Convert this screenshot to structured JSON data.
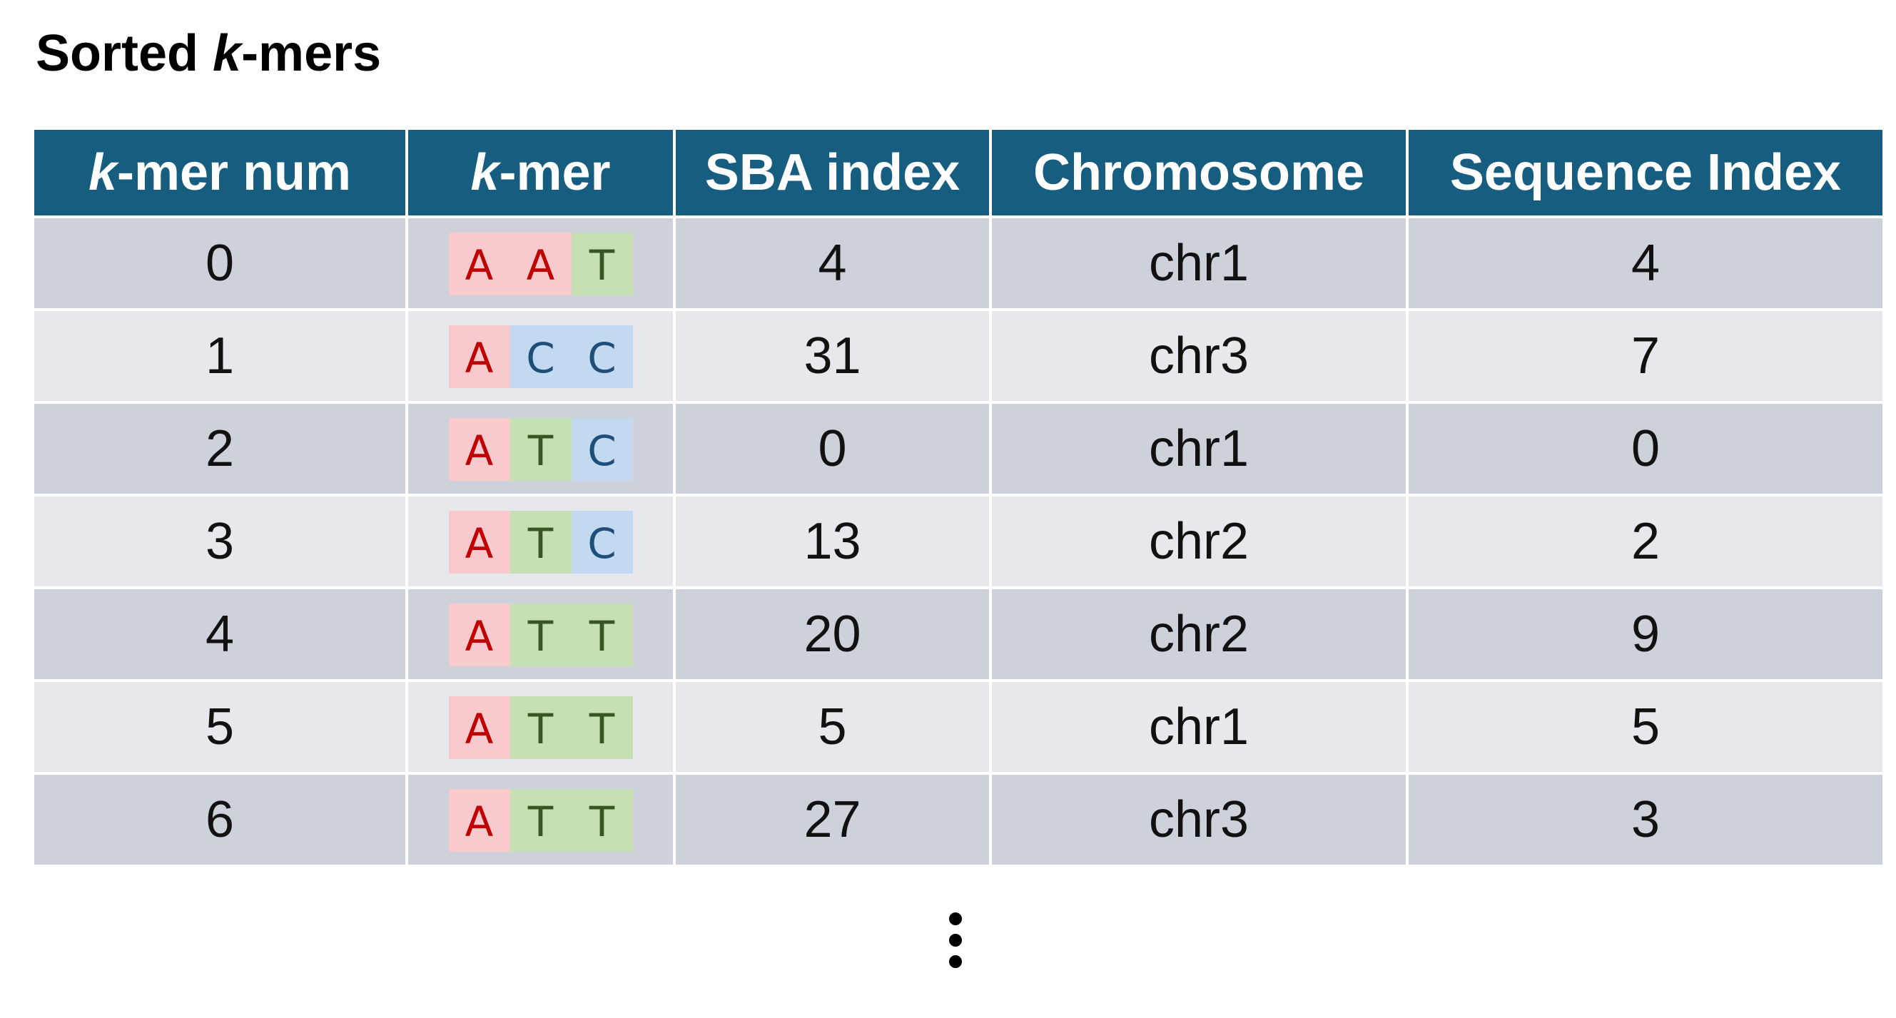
{
  "title": {
    "prefix": "Sorted ",
    "italic": "k",
    "suffix": "-mers"
  },
  "table": {
    "headers": [
      {
        "italic": "k",
        "text": "-mer num"
      },
      {
        "italic": "k",
        "text": "-mer"
      },
      {
        "italic": "",
        "text": "SBA index"
      },
      {
        "italic": "",
        "text": "Chromosome"
      },
      {
        "italic": "",
        "text": "Sequence Index"
      }
    ],
    "rows": [
      {
        "num": "0",
        "kmer": [
          "A",
          "A",
          "T"
        ],
        "sba": "4",
        "chrom": "chr1",
        "seq": "4"
      },
      {
        "num": "1",
        "kmer": [
          "A",
          "C",
          "C"
        ],
        "sba": "31",
        "chrom": "chr3",
        "seq": "7"
      },
      {
        "num": "2",
        "kmer": [
          "A",
          "T",
          "C"
        ],
        "sba": "0",
        "chrom": "chr1",
        "seq": "0"
      },
      {
        "num": "3",
        "kmer": [
          "A",
          "T",
          "C"
        ],
        "sba": "13",
        "chrom": "chr2",
        "seq": "2"
      },
      {
        "num": "4",
        "kmer": [
          "A",
          "T",
          "T"
        ],
        "sba": "20",
        "chrom": "chr2",
        "seq": "9"
      },
      {
        "num": "5",
        "kmer": [
          "A",
          "T",
          "T"
        ],
        "sba": "5",
        "chrom": "chr1",
        "seq": "5"
      },
      {
        "num": "6",
        "kmer": [
          "A",
          "T",
          "T"
        ],
        "sba": "27",
        "chrom": "chr3",
        "seq": "3"
      }
    ]
  },
  "colors": {
    "header_bg": "#175d80",
    "row_dark": "#cdd1d9",
    "row_light": "#e6e8ec",
    "base_A_bg": "#f8c9cd",
    "base_A_text": "#c00000",
    "base_C_bg": "#c2d9ef",
    "base_C_text": "#1f4e79",
    "base_T_bg": "#c6e0b4",
    "base_T_text": "#375623"
  },
  "continuation_icon": "vertical-ellipsis-icon"
}
